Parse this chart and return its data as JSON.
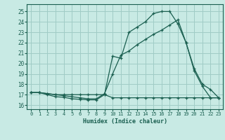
{
  "xlabel": "Humidex (Indice chaleur)",
  "bg_color": "#c8eae4",
  "grid_color": "#a0ccc6",
  "line_color": "#1a5f50",
  "xlim": [
    -0.5,
    23.5
  ],
  "ylim": [
    15.6,
    25.7
  ],
  "yticks": [
    16,
    17,
    18,
    19,
    20,
    21,
    22,
    23,
    24,
    25
  ],
  "xticks": [
    0,
    1,
    2,
    3,
    4,
    5,
    6,
    7,
    8,
    9,
    10,
    11,
    12,
    13,
    14,
    15,
    16,
    17,
    18,
    19,
    20,
    21,
    22,
    23
  ],
  "series1_x": [
    0,
    1,
    2,
    3,
    4,
    5,
    6,
    7,
    8,
    9,
    10,
    11,
    12,
    13,
    14,
    15,
    16,
    17,
    18,
    19,
    20,
    21,
    22,
    23
  ],
  "series1_y": [
    17.2,
    17.2,
    17.0,
    16.8,
    16.75,
    16.6,
    16.55,
    16.5,
    16.5,
    17.0,
    20.7,
    20.5,
    23.0,
    23.5,
    24.0,
    24.8,
    25.0,
    25.0,
    23.8,
    22.0,
    19.3,
    17.8,
    16.7,
    16.7
  ],
  "series2_x": [
    0,
    1,
    2,
    3,
    4,
    5,
    6,
    7,
    8,
    9,
    10,
    11,
    12,
    13,
    14,
    15,
    16,
    17,
    18,
    19,
    20,
    21,
    22,
    23
  ],
  "series2_y": [
    17.2,
    17.2,
    17.1,
    17.0,
    17.0,
    17.0,
    17.0,
    17.0,
    17.0,
    17.0,
    16.7,
    16.7,
    16.7,
    16.7,
    16.7,
    16.7,
    16.7,
    16.7,
    16.7,
    16.7,
    16.7,
    16.7,
    16.7,
    16.7
  ],
  "series3_x": [
    0,
    1,
    2,
    3,
    4,
    5,
    6,
    7,
    8,
    9,
    10,
    11,
    12,
    13,
    14,
    15,
    16,
    17,
    18,
    19,
    20,
    21,
    22,
    23
  ],
  "series3_y": [
    17.2,
    17.2,
    17.1,
    17.0,
    16.9,
    16.8,
    16.7,
    16.6,
    16.6,
    17.1,
    19.0,
    20.8,
    21.2,
    21.8,
    22.3,
    22.8,
    23.2,
    23.7,
    24.2,
    22.0,
    19.5,
    18.0,
    17.5,
    16.7
  ]
}
